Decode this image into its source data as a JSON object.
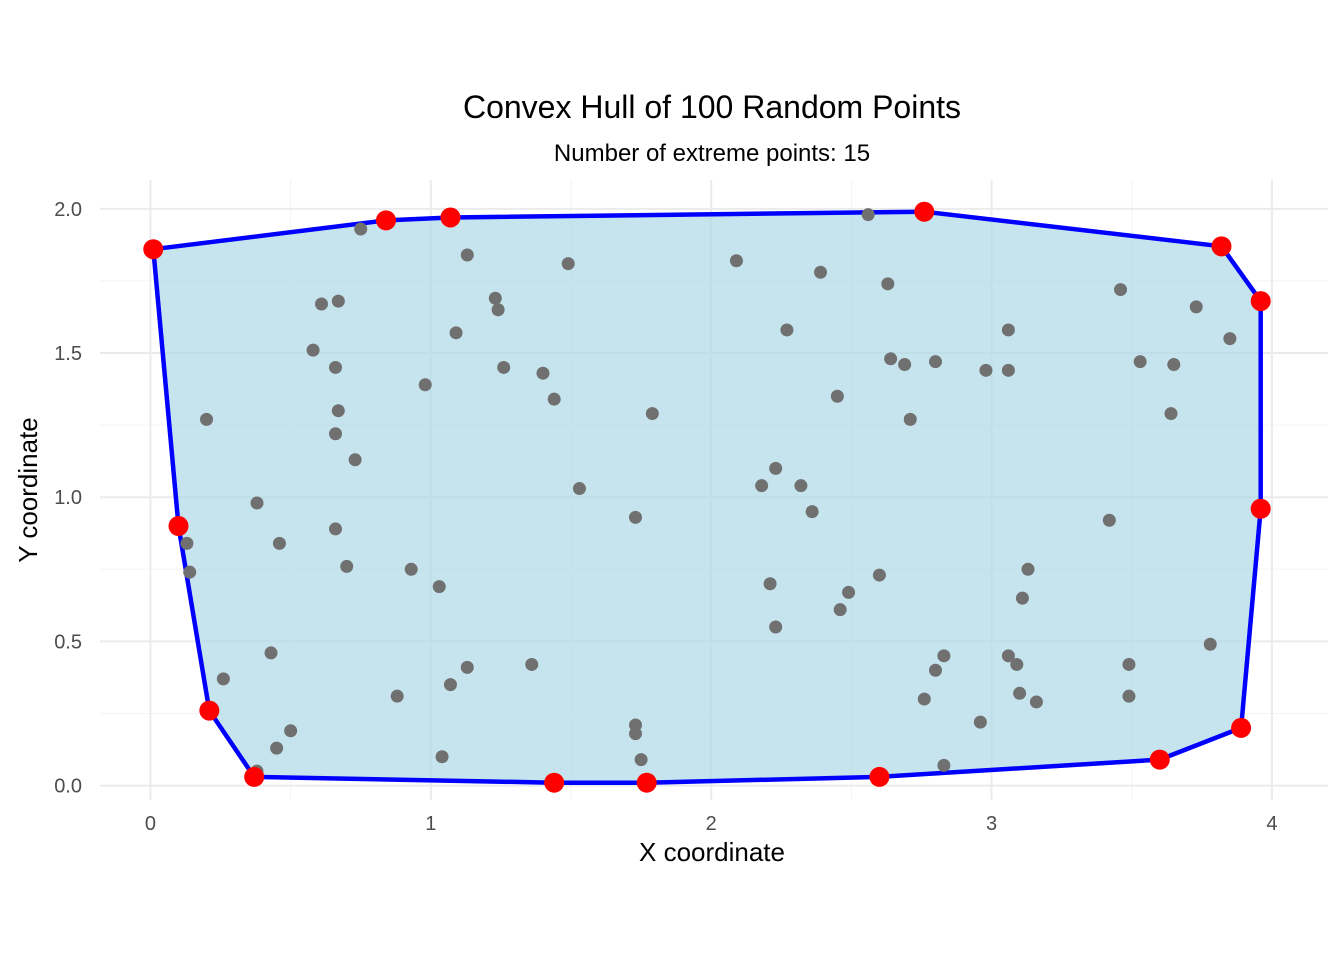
{
  "chart_data": {
    "type": "scatter",
    "title": "Convex Hull of 100 Random Points",
    "subtitle": "Number of extreme points: 15",
    "xlabel": "X coordinate",
    "ylabel": "Y coordinate",
    "xlim": [
      -0.18,
      4.2
    ],
    "ylim": [
      -0.05,
      2.1
    ],
    "xticks": [
      0,
      1,
      2,
      3,
      4
    ],
    "yticks": [
      0.0,
      0.5,
      1.0,
      1.5,
      2.0
    ],
    "xtick_labels": [
      "0",
      "1",
      "2",
      "3",
      "4"
    ],
    "ytick_labels": [
      "0.0",
      "0.5",
      "1.0",
      "1.5",
      "2.0"
    ],
    "grid": true,
    "colors": {
      "hull_fill": "#add8e6",
      "hull_line": "#0000ff",
      "points": "#707070",
      "extreme_points": "#ff0000"
    },
    "hull_points": [
      {
        "x": 0.01,
        "y": 1.86
      },
      {
        "x": 0.84,
        "y": 1.96
      },
      {
        "x": 1.07,
        "y": 1.97
      },
      {
        "x": 2.76,
        "y": 1.99
      },
      {
        "x": 3.82,
        "y": 1.87
      },
      {
        "x": 3.96,
        "y": 1.68
      },
      {
        "x": 3.96,
        "y": 0.96
      },
      {
        "x": 3.89,
        "y": 0.2
      },
      {
        "x": 3.6,
        "y": 0.09
      },
      {
        "x": 2.6,
        "y": 0.03
      },
      {
        "x": 1.77,
        "y": 0.01
      },
      {
        "x": 1.44,
        "y": 0.01
      },
      {
        "x": 0.37,
        "y": 0.03
      },
      {
        "x": 0.21,
        "y": 0.26
      },
      {
        "x": 0.1,
        "y": 0.9
      }
    ],
    "interior_points": [
      {
        "x": 0.75,
        "y": 1.93
      },
      {
        "x": 2.56,
        "y": 1.98
      },
      {
        "x": 1.13,
        "y": 1.84
      },
      {
        "x": 1.49,
        "y": 1.81
      },
      {
        "x": 2.09,
        "y": 1.82
      },
      {
        "x": 2.39,
        "y": 1.78
      },
      {
        "x": 2.63,
        "y": 1.74
      },
      {
        "x": 3.46,
        "y": 1.72
      },
      {
        "x": 0.61,
        "y": 1.67
      },
      {
        "x": 0.67,
        "y": 1.68
      },
      {
        "x": 1.23,
        "y": 1.69
      },
      {
        "x": 1.24,
        "y": 1.65
      },
      {
        "x": 3.73,
        "y": 1.66
      },
      {
        "x": 3.85,
        "y": 1.55
      },
      {
        "x": 1.09,
        "y": 1.57
      },
      {
        "x": 2.27,
        "y": 1.58
      },
      {
        "x": 3.06,
        "y": 1.58
      },
      {
        "x": 0.58,
        "y": 1.51
      },
      {
        "x": 0.66,
        "y": 1.45
      },
      {
        "x": 1.26,
        "y": 1.45
      },
      {
        "x": 2.64,
        "y": 1.48
      },
      {
        "x": 2.69,
        "y": 1.46
      },
      {
        "x": 2.8,
        "y": 1.47
      },
      {
        "x": 2.98,
        "y": 1.44
      },
      {
        "x": 3.06,
        "y": 1.44
      },
      {
        "x": 3.53,
        "y": 1.47
      },
      {
        "x": 3.65,
        "y": 1.46
      },
      {
        "x": 1.4,
        "y": 1.43
      },
      {
        "x": 0.98,
        "y": 1.39
      },
      {
        "x": 1.44,
        "y": 1.34
      },
      {
        "x": 2.45,
        "y": 1.35
      },
      {
        "x": 0.2,
        "y": 1.27
      },
      {
        "x": 0.67,
        "y": 1.3
      },
      {
        "x": 1.79,
        "y": 1.29
      },
      {
        "x": 2.71,
        "y": 1.27
      },
      {
        "x": 3.64,
        "y": 1.29
      },
      {
        "x": 0.66,
        "y": 1.22
      },
      {
        "x": 0.73,
        "y": 1.13
      },
      {
        "x": 2.23,
        "y": 1.1
      },
      {
        "x": 2.18,
        "y": 1.04
      },
      {
        "x": 2.32,
        "y": 1.04
      },
      {
        "x": 1.53,
        "y": 1.03
      },
      {
        "x": 0.38,
        "y": 0.98
      },
      {
        "x": 2.36,
        "y": 0.95
      },
      {
        "x": 1.73,
        "y": 0.93
      },
      {
        "x": 3.42,
        "y": 0.92
      },
      {
        "x": 0.66,
        "y": 0.89
      },
      {
        "x": 0.13,
        "y": 0.84
      },
      {
        "x": 0.46,
        "y": 0.84
      },
      {
        "x": 0.7,
        "y": 0.76
      },
      {
        "x": 0.93,
        "y": 0.75
      },
      {
        "x": 3.13,
        "y": 0.75
      },
      {
        "x": 0.14,
        "y": 0.74
      },
      {
        "x": 2.6,
        "y": 0.73
      },
      {
        "x": 2.21,
        "y": 0.7
      },
      {
        "x": 1.03,
        "y": 0.69
      },
      {
        "x": 2.49,
        "y": 0.67
      },
      {
        "x": 3.11,
        "y": 0.65
      },
      {
        "x": 2.46,
        "y": 0.61
      },
      {
        "x": 2.23,
        "y": 0.55
      },
      {
        "x": 3.78,
        "y": 0.49
      },
      {
        "x": 0.43,
        "y": 0.46
      },
      {
        "x": 2.83,
        "y": 0.45
      },
      {
        "x": 3.06,
        "y": 0.45
      },
      {
        "x": 3.09,
        "y": 0.42
      },
      {
        "x": 3.49,
        "y": 0.42
      },
      {
        "x": 1.36,
        "y": 0.42
      },
      {
        "x": 1.13,
        "y": 0.41
      },
      {
        "x": 2.8,
        "y": 0.4
      },
      {
        "x": 0.26,
        "y": 0.37
      },
      {
        "x": 1.07,
        "y": 0.35
      },
      {
        "x": 3.1,
        "y": 0.32
      },
      {
        "x": 0.88,
        "y": 0.31
      },
      {
        "x": 3.49,
        "y": 0.31
      },
      {
        "x": 2.76,
        "y": 0.3
      },
      {
        "x": 3.16,
        "y": 0.29
      },
      {
        "x": 2.96,
        "y": 0.22
      },
      {
        "x": 1.73,
        "y": 0.21
      },
      {
        "x": 0.5,
        "y": 0.19
      },
      {
        "x": 1.73,
        "y": 0.18
      },
      {
        "x": 0.45,
        "y": 0.13
      },
      {
        "x": 1.04,
        "y": 0.1
      },
      {
        "x": 1.75,
        "y": 0.09
      },
      {
        "x": 2.83,
        "y": 0.07
      },
      {
        "x": 0.38,
        "y": 0.05
      }
    ]
  }
}
